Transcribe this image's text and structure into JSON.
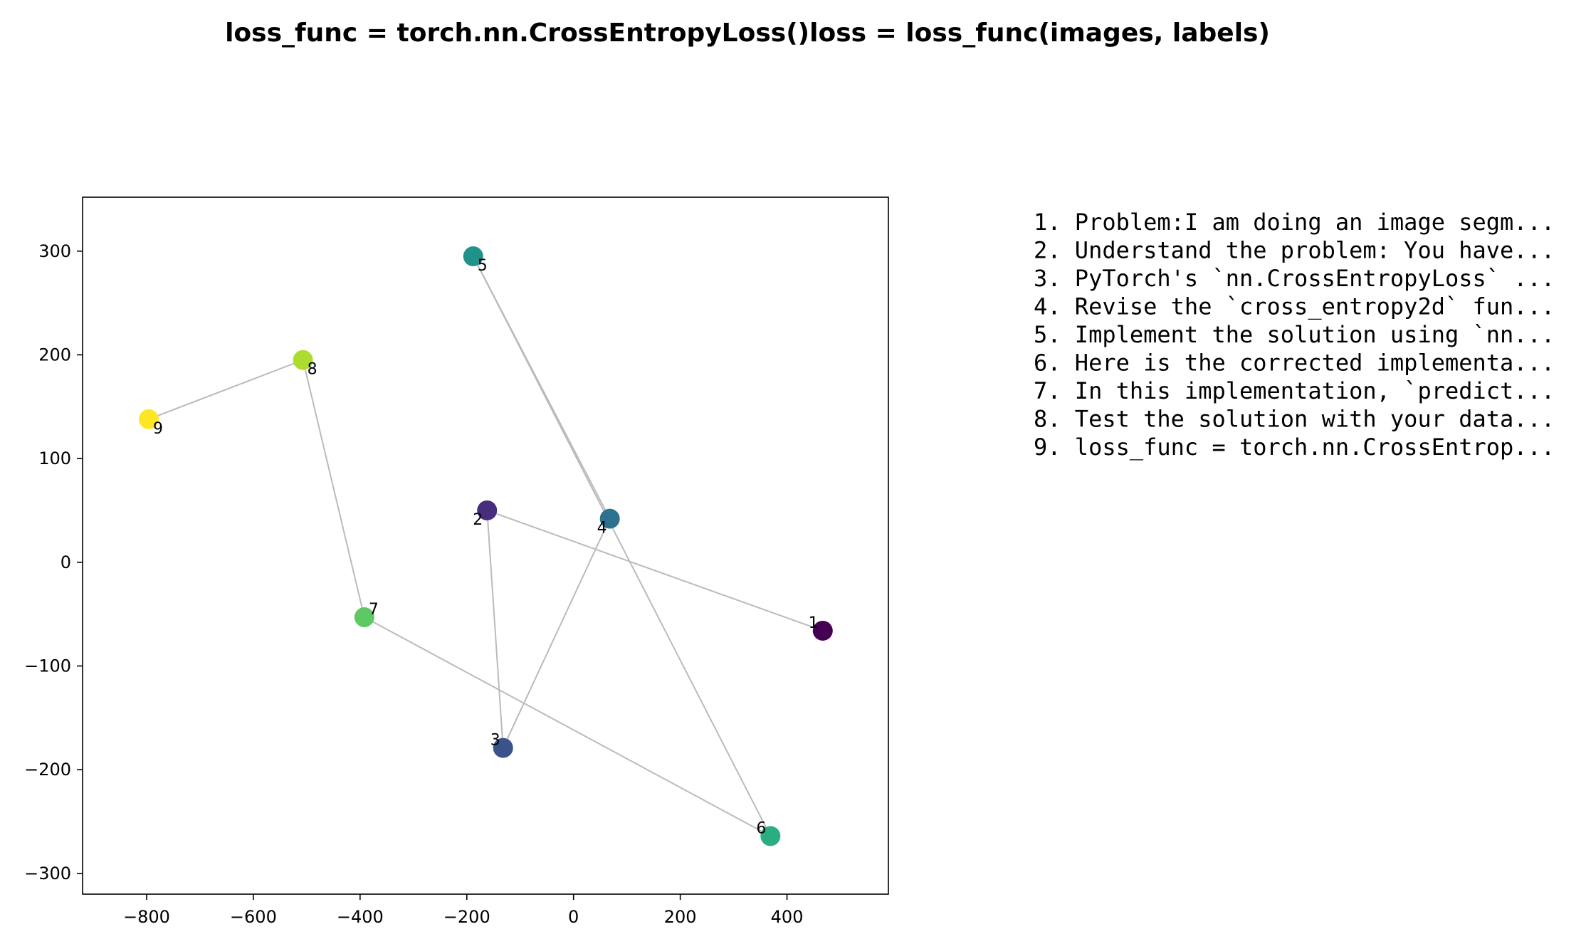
{
  "chart_data": {
    "type": "scatter",
    "title": "loss_func = torch.nn.CrossEntropyLoss()loss = loss_func(images, labels)",
    "xlabel": "",
    "ylabel": "",
    "xlim": [
      -920,
      590
    ],
    "ylim": [
      -320,
      352
    ],
    "xticks": [
      -800,
      -600,
      -400,
      -200,
      0,
      200,
      400
    ],
    "xtick_labels": [
      "−800",
      "−600",
      "−400",
      "−200",
      "0",
      "200",
      "400"
    ],
    "yticks": [
      300,
      200,
      100,
      0,
      -100,
      -200,
      -300
    ],
    "ytick_labels": [
      "300",
      "200",
      "100",
      "0",
      "−100",
      "−200",
      "−300"
    ],
    "grid": false,
    "colormap": "viridis",
    "line_color": "#bbbbbb",
    "points": [
      {
        "label": "1",
        "x": 467,
        "y": -66,
        "color": "#440154"
      },
      {
        "label": "2",
        "x": -162,
        "y": 50,
        "color": "#472d7b"
      },
      {
        "label": "3",
        "x": -132,
        "y": -179,
        "color": "#3b528b"
      },
      {
        "label": "4",
        "x": 68,
        "y": 42,
        "color": "#2c728e"
      },
      {
        "label": "5",
        "x": -188,
        "y": 295,
        "color": "#21918c"
      },
      {
        "label": "6",
        "x": 369,
        "y": -264,
        "color": "#28ae80"
      },
      {
        "label": "7",
        "x": -392,
        "y": -53,
        "color": "#5ec962"
      },
      {
        "label": "8",
        "x": -507,
        "y": 195,
        "color": "#addc30"
      },
      {
        "label": "9",
        "x": -796,
        "y": 138,
        "color": "#fde725"
      }
    ],
    "legend_placement": "right",
    "legend": [
      "1. Problem:I am doing an image segm...",
      "2. Understand the problem: You have...",
      "3. PyTorch's `nn.CrossEntropyLoss` ...",
      "4. Revise the `cross_entropy2d` fun...",
      "5. Implement the solution using `nn...",
      "6. Here is the corrected implementa...",
      "7. In this implementation, `predict...",
      "8. Test the solution with your data...",
      "9. loss_func = torch.nn.CrossEntrop..."
    ]
  }
}
